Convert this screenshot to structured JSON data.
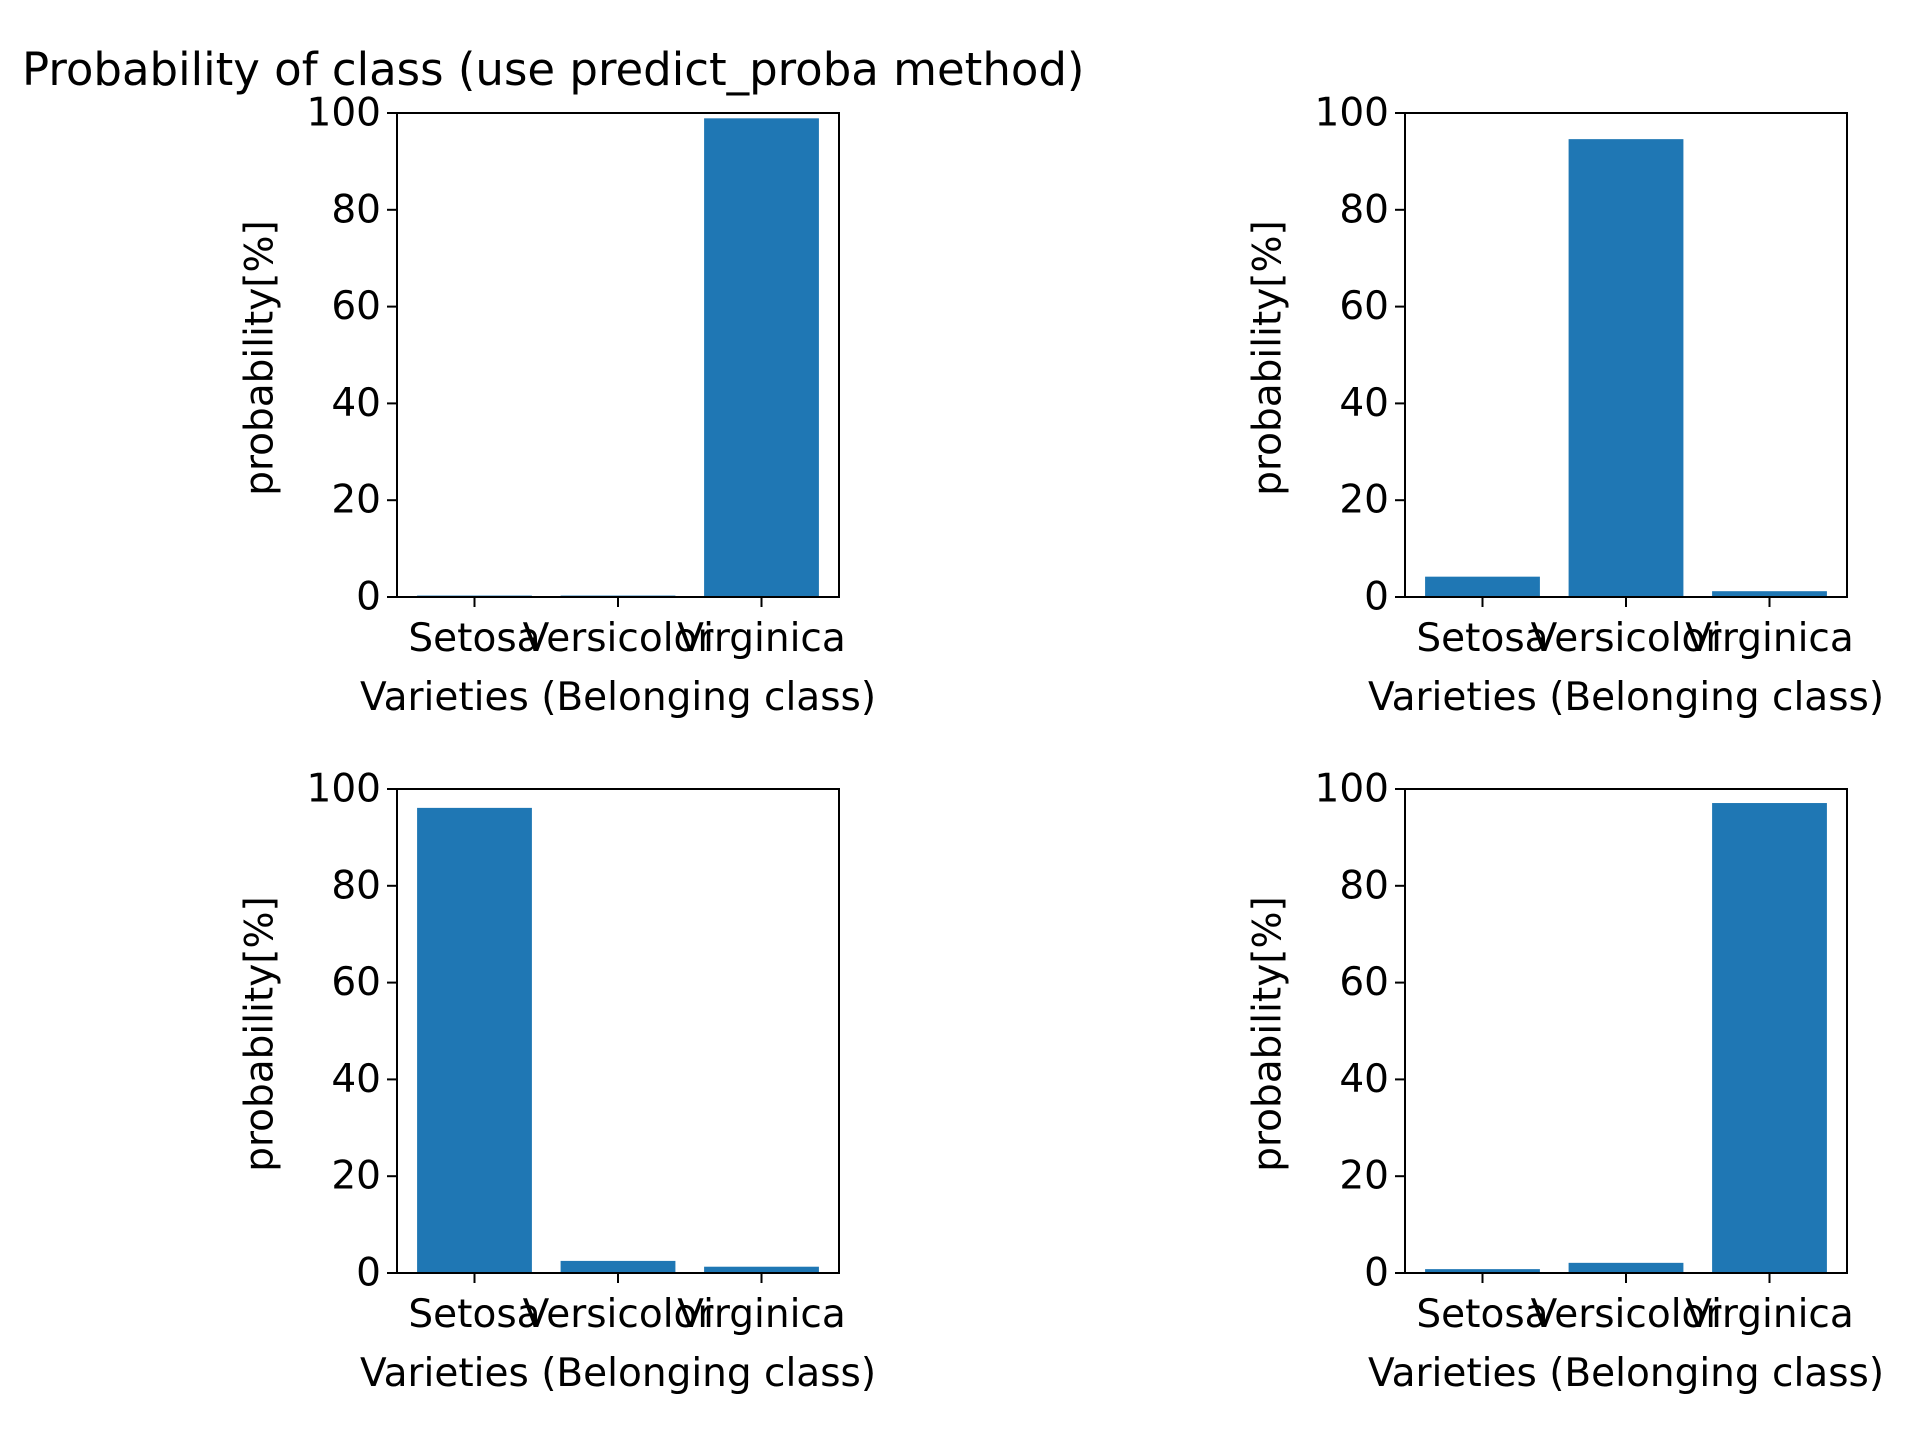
{
  "figure": {
    "title": "Probability of class (use predict_proba method)",
    "bar_color": "#1f77b4"
  },
  "chart_data": [
    {
      "type": "bar",
      "categories": [
        "Setosa",
        "Versicolor",
        "Virginica"
      ],
      "values": [
        0.3,
        0.3,
        98.9
      ],
      "xlabel": "Varieties (Belonging class)",
      "ylabel": "probability[%]",
      "ylim": [
        0,
        100
      ],
      "yticks": [
        "0",
        "20",
        "40",
        "60",
        "80",
        "100"
      ]
    },
    {
      "type": "bar",
      "categories": [
        "Setosa",
        "Versicolor",
        "Virginica"
      ],
      "values": [
        4.2,
        94.6,
        1.2
      ],
      "xlabel": "Varieties (Belonging class)",
      "ylabel": "probability[%]",
      "ylim": [
        0,
        100
      ],
      "yticks": [
        "0",
        "20",
        "40",
        "60",
        "80",
        "100"
      ]
    },
    {
      "type": "bar",
      "categories": [
        "Setosa",
        "Versicolor",
        "Virginica"
      ],
      "values": [
        96.1,
        2.5,
        1.3
      ],
      "xlabel": "Varieties (Belonging class)",
      "ylabel": "probability[%]",
      "ylim": [
        0,
        100
      ],
      "yticks": [
        "0",
        "20",
        "40",
        "60",
        "80",
        "100"
      ]
    },
    {
      "type": "bar",
      "categories": [
        "Setosa",
        "Versicolor",
        "Virginica"
      ],
      "values": [
        0.8,
        2.1,
        97.1
      ],
      "xlabel": "Varieties (Belonging class)",
      "ylabel": "probability[%]",
      "ylim": [
        0,
        100
      ],
      "yticks": [
        "0",
        "20",
        "40",
        "60",
        "80",
        "100"
      ]
    }
  ]
}
